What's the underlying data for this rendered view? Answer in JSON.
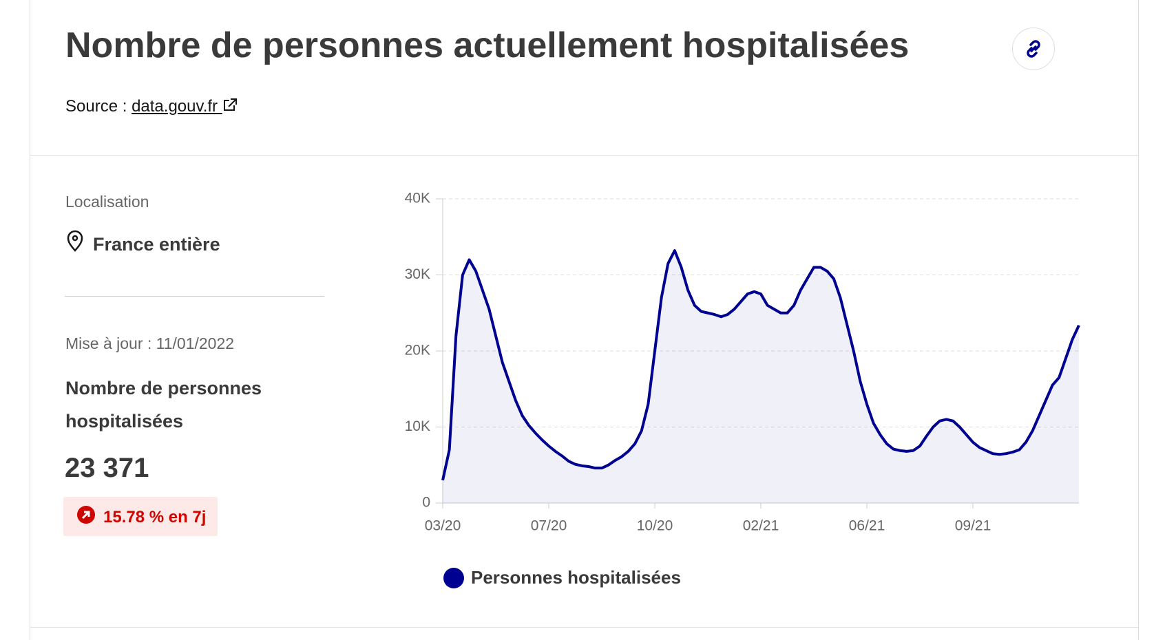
{
  "header": {
    "title": "Nombre de personnes actuellement hospitalisées",
    "source_label": "Source :",
    "source_link": "data.gouv.fr"
  },
  "sidebar": {
    "location_label": "Localisation",
    "location": "France entière",
    "updated": "Mise à jour : 11/01/2022",
    "metric_label": "Nombre de personnes hospitalisées",
    "metric_value": "23 371",
    "trend": "15.78 % en 7j"
  },
  "chart_data": {
    "type": "line",
    "categories": [
      "03/20",
      null,
      null,
      null,
      null,
      null,
      null,
      null,
      null,
      null,
      null,
      null,
      null,
      null,
      null,
      null,
      "07/20",
      null,
      null,
      null,
      null,
      null,
      null,
      null,
      null,
      null,
      null,
      null,
      null,
      null,
      null,
      null,
      "10/20",
      null,
      null,
      null,
      null,
      null,
      null,
      null,
      null,
      null,
      null,
      null,
      null,
      null,
      null,
      null,
      "02/21",
      null,
      null,
      null,
      null,
      null,
      null,
      null,
      null,
      null,
      null,
      null,
      null,
      null,
      null,
      null,
      "06/21",
      null,
      null,
      null,
      null,
      null,
      null,
      null,
      null,
      null,
      null,
      null,
      null,
      null,
      null,
      null,
      "09/21",
      null,
      null,
      null,
      null,
      null,
      null,
      null,
      null,
      null,
      null,
      null,
      null,
      null,
      null,
      null,
      null
    ],
    "series": [
      {
        "name": "Personnes hospitalisées",
        "color": "#000091",
        "values": [
          3000,
          7000,
          22000,
          30000,
          32000,
          30500,
          28000,
          25500,
          22000,
          18500,
          16000,
          13500,
          11500,
          10200,
          9200,
          8300,
          7500,
          6800,
          6200,
          5500,
          5100,
          4900,
          4800,
          4600,
          4600,
          5000,
          5600,
          6100,
          6800,
          7800,
          9500,
          13000,
          20000,
          27000,
          31500,
          33200,
          31000,
          28000,
          26000,
          25200,
          25000,
          24800,
          24500,
          24800,
          25500,
          26500,
          27500,
          27800,
          27500,
          26000,
          25500,
          25000,
          25000,
          26000,
          28000,
          29500,
          31000,
          31000,
          30500,
          29500,
          27000,
          23500,
          20000,
          16000,
          13000,
          10500,
          9000,
          7800,
          7100,
          6900,
          6800,
          6900,
          7500,
          8800,
          10000,
          10800,
          11000,
          10800,
          10000,
          9000,
          8000,
          7300,
          6900,
          6500,
          6400,
          6500,
          6700,
          7000,
          8000,
          9500,
          11500,
          13500,
          15500,
          16500,
          19000,
          21500,
          23371
        ]
      }
    ],
    "ylim": [
      0,
      40000
    ],
    "yticks": [
      0,
      {
        "value": 10000,
        "label": "10K"
      },
      {
        "value": 20000,
        "label": "20K"
      },
      {
        "value": 30000,
        "label": "30K"
      },
      {
        "value": 40000,
        "label": "40K"
      }
    ],
    "grid": true
  }
}
